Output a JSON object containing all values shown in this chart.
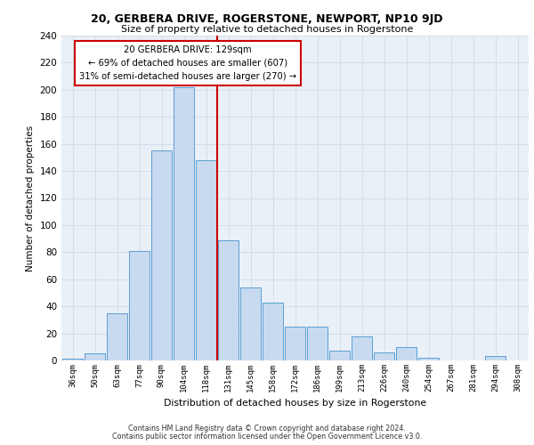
{
  "title1": "20, GERBERA DRIVE, ROGERSTONE, NEWPORT, NP10 9JD",
  "title2": "Size of property relative to detached houses in Rogerstone",
  "xlabel": "Distribution of detached houses by size in Rogerstone",
  "ylabel": "Number of detached properties",
  "categories": [
    "36sqm",
    "50sqm",
    "63sqm",
    "77sqm",
    "90sqm",
    "104sqm",
    "118sqm",
    "131sqm",
    "145sqm",
    "158sqm",
    "172sqm",
    "186sqm",
    "199sqm",
    "213sqm",
    "226sqm",
    "240sqm",
    "254sqm",
    "267sqm",
    "281sqm",
    "294sqm",
    "308sqm"
  ],
  "values": [
    1,
    5,
    35,
    81,
    155,
    202,
    148,
    89,
    54,
    43,
    25,
    25,
    7,
    18,
    6,
    10,
    2,
    0,
    0,
    3,
    0
  ],
  "bar_color": "#c8daf0",
  "bar_edge_color": "#5a9fd4",
  "vline_x_index": 6.5,
  "annotation_text_line1": "20 GERBERA DRIVE: 129sqm",
  "annotation_text_line2": "← 69% of detached houses are smaller (607)",
  "annotation_text_line3": "31% of semi-detached houses are larger (270) →",
  "annotation_box_color": "#ffffff",
  "annotation_box_edge_color": "#cc0000",
  "vline_color": "#cc0000",
  "grid_color": "#d4dde8",
  "background_color": "#eaf0f8",
  "footer1": "Contains HM Land Registry data © Crown copyright and database right 2024.",
  "footer2": "Contains public sector information licensed under the Open Government Licence v3.0.",
  "ylim": [
    0,
    240
  ],
  "yticks": [
    0,
    20,
    40,
    60,
    80,
    100,
    120,
    140,
    160,
    180,
    200,
    220,
    240
  ]
}
